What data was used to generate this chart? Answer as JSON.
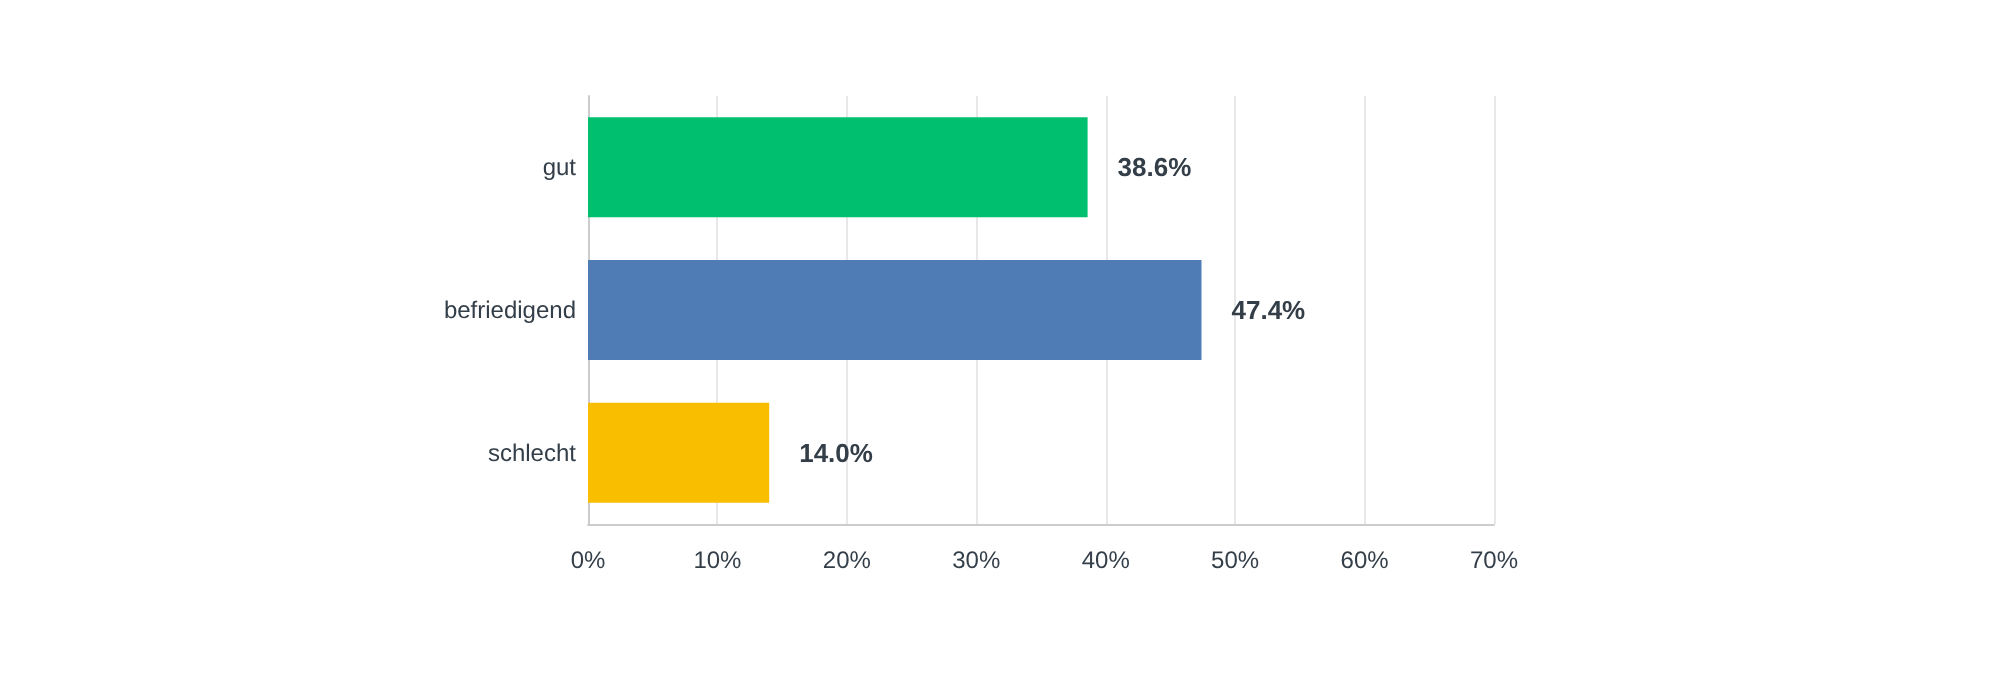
{
  "chart_data": {
    "type": "bar",
    "orientation": "horizontal",
    "categories": [
      "gut",
      "befriedigend",
      "schlecht"
    ],
    "values": [
      38.6,
      47.4,
      14.0
    ],
    "colors": [
      "#00bf6f",
      "#507cb6",
      "#f9be00"
    ],
    "value_labels": [
      "38.6%",
      "47.4%",
      "14.0%"
    ],
    "xlim": [
      0,
      70
    ],
    "xticks": [
      {
        "value": 0,
        "label": "0%"
      },
      {
        "value": 10,
        "label": "10%"
      },
      {
        "value": 20,
        "label": "20%"
      },
      {
        "value": 30,
        "label": "30%"
      },
      {
        "value": 40,
        "label": "40%"
      },
      {
        "value": 50,
        "label": "50%"
      },
      {
        "value": 60,
        "label": "60%"
      },
      {
        "value": 70,
        "label": "70%"
      }
    ],
    "grid": "x"
  }
}
